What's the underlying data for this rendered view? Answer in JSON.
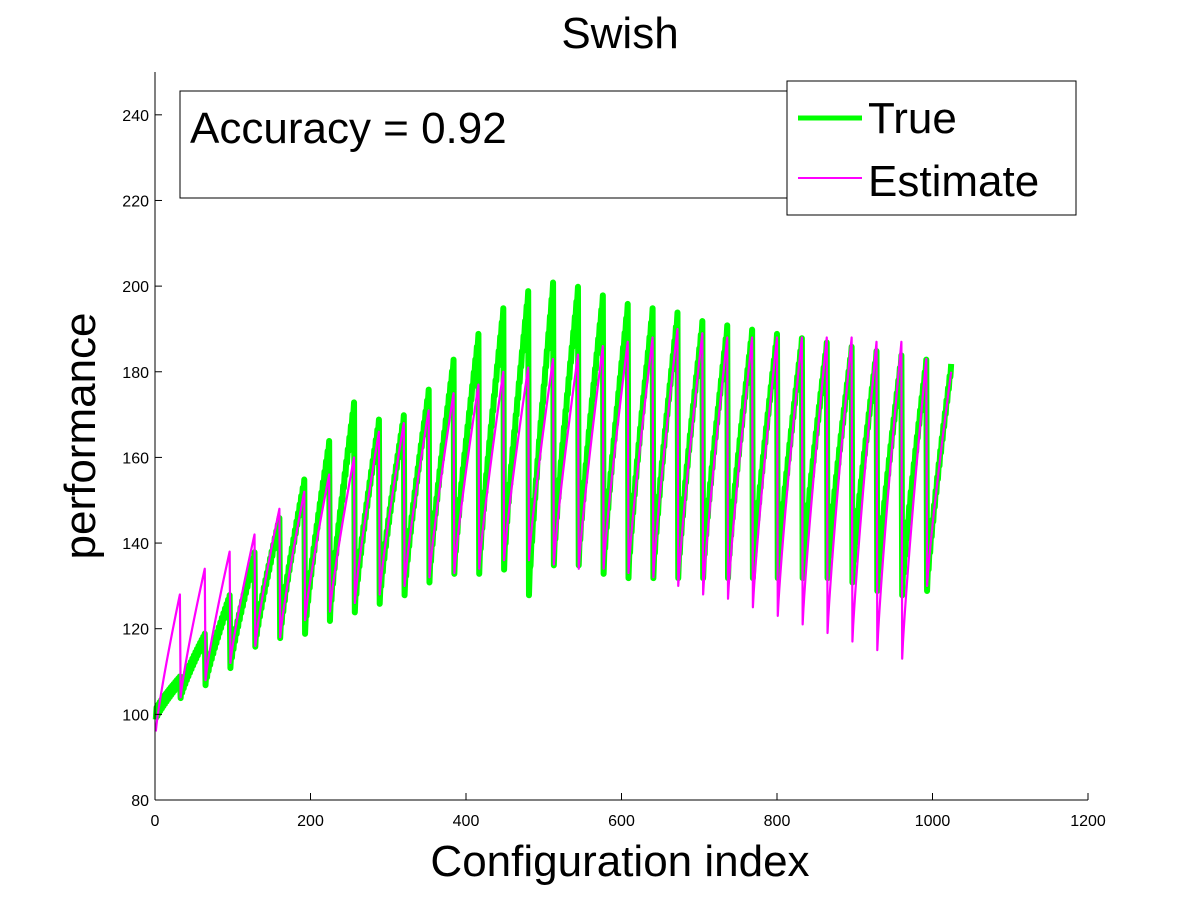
{
  "chart_data": {
    "type": "line",
    "title": "Swish",
    "xlabel": "Configuration index",
    "ylabel": "performance",
    "xlim": [
      0,
      1200
    ],
    "ylim": [
      80,
      250
    ],
    "x_ticks": [
      0,
      200,
      400,
      600,
      800,
      1000,
      1200
    ],
    "y_ticks": [
      80,
      100,
      120,
      140,
      160,
      180,
      200,
      220,
      240
    ],
    "grid": false,
    "legend_position": "top-right",
    "annotation": "Accuracy = 0.92",
    "overlap_color": "#808080",
    "x_start": 1,
    "x_end": 1024,
    "segment_length": 32,
    "series": [
      {
        "name": "True",
        "color": "#00ff00",
        "segments": [
          {
            "low": 100,
            "high": 108
          },
          {
            "low": 105,
            "high": 118
          },
          {
            "low": 108,
            "high": 127
          },
          {
            "low": 112,
            "high": 137
          },
          {
            "low": 117,
            "high": 145
          },
          {
            "low": 119,
            "high": 154
          },
          {
            "low": 120,
            "high": 163
          },
          {
            "low": 123,
            "high": 172
          },
          {
            "low": 125,
            "high": 168
          },
          {
            "low": 127,
            "high": 169
          },
          {
            "low": 129,
            "high": 175
          },
          {
            "low": 132,
            "high": 182
          },
          {
            "low": 134,
            "high": 188
          },
          {
            "low": 134,
            "high": 194
          },
          {
            "low": 135,
            "high": 198
          },
          {
            "low": 129,
            "high": 200
          },
          {
            "low": 136,
            "high": 199
          },
          {
            "low": 136,
            "high": 197
          },
          {
            "low": 134,
            "high": 195
          },
          {
            "low": 133,
            "high": 194
          },
          {
            "low": 133,
            "high": 193
          },
          {
            "low": 133,
            "high": 191
          },
          {
            "low": 133,
            "high": 190
          },
          {
            "low": 133,
            "high": 189
          },
          {
            "low": 133,
            "high": 188
          },
          {
            "low": 133,
            "high": 187
          },
          {
            "low": 133,
            "high": 186
          },
          {
            "low": 133,
            "high": 185
          },
          {
            "low": 132,
            "high": 184
          },
          {
            "low": 130,
            "high": 183
          },
          {
            "low": 129,
            "high": 182
          },
          {
            "low": 130,
            "high": 181
          }
        ]
      },
      {
        "name": "Estimate",
        "color": "#ff00ff",
        "segments": [
          {
            "low": 96,
            "high": 128
          },
          {
            "low": 104,
            "high": 134
          },
          {
            "low": 108,
            "high": 138
          },
          {
            "low": 112,
            "high": 142
          },
          {
            "low": 116,
            "high": 148
          },
          {
            "low": 118,
            "high": 152
          },
          {
            "low": 122,
            "high": 156
          },
          {
            "low": 124,
            "high": 160
          },
          {
            "low": 126,
            "high": 166
          },
          {
            "low": 128,
            "high": 168
          },
          {
            "low": 130,
            "high": 171
          },
          {
            "low": 132,
            "high": 175
          },
          {
            "low": 133,
            "high": 177
          },
          {
            "low": 134,
            "high": 180
          },
          {
            "low": 136,
            "high": 181
          },
          {
            "low": 136,
            "high": 183
          },
          {
            "low": 135,
            "high": 184
          },
          {
            "low": 134,
            "high": 186
          },
          {
            "low": 134,
            "high": 187
          },
          {
            "low": 133,
            "high": 188
          },
          {
            "low": 132,
            "high": 190
          },
          {
            "low": 130,
            "high": 189
          },
          {
            "low": 128,
            "high": 188
          },
          {
            "low": 127,
            "high": 188
          },
          {
            "low": 125,
            "high": 188
          },
          {
            "low": 123,
            "high": 188
          },
          {
            "low": 121,
            "high": 188
          },
          {
            "low": 119,
            "high": 188
          },
          {
            "low": 117,
            "high": 187
          },
          {
            "low": 115,
            "high": 187
          },
          {
            "low": 113,
            "high": 183
          },
          {
            "low": 130,
            "high": 180
          }
        ]
      }
    ]
  }
}
